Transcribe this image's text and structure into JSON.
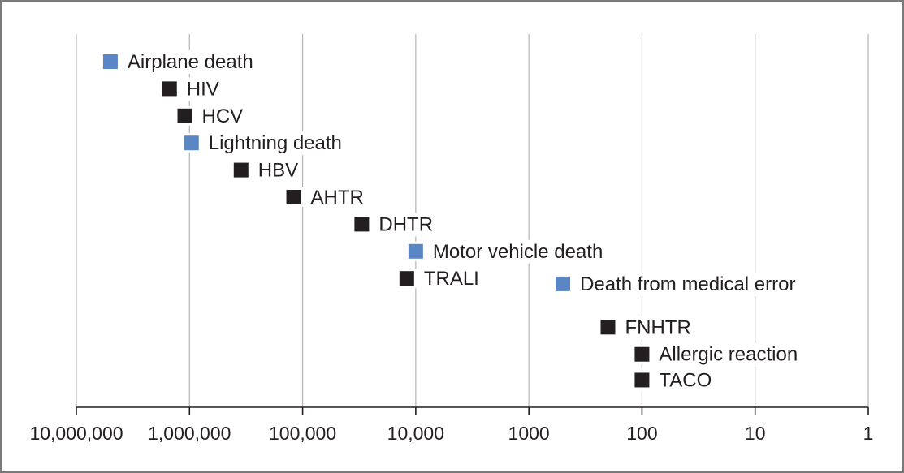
{
  "chart_data": {
    "type": "scatter",
    "title": "",
    "xlabel": "",
    "ylabel": "",
    "x_scale": "log",
    "x_reversed": true,
    "xlim": [
      10000000,
      1
    ],
    "x_ticks": [
      10000000,
      1000000,
      100000,
      10000,
      1000,
      100,
      10,
      1
    ],
    "x_tick_labels": [
      "10,000,000",
      "1,000,000",
      "100,000",
      "10,000",
      "1000",
      "100",
      "10",
      "1"
    ],
    "grid": "vertical",
    "legend": "none",
    "colors": {
      "transfusion_risk": "#231f20",
      "comparison_risk": "#5b86c5"
    },
    "points": [
      {
        "label": "Airplane death",
        "x": 5000000,
        "category": "comparison_risk"
      },
      {
        "label": "HIV",
        "x": 1500000,
        "category": "transfusion_risk"
      },
      {
        "label": "HCV",
        "x": 1100000,
        "category": "transfusion_risk"
      },
      {
        "label": "Lightning death",
        "x": 960000,
        "category": "comparison_risk"
      },
      {
        "label": "HBV",
        "x": 350000,
        "category": "transfusion_risk"
      },
      {
        "label": "AHTR",
        "x": 120000,
        "category": "transfusion_risk"
      },
      {
        "label": "DHTR",
        "x": 30000,
        "category": "transfusion_risk"
      },
      {
        "label": "Motor vehicle death",
        "x": 10000,
        "category": "comparison_risk"
      },
      {
        "label": "TRALI",
        "x": 12000,
        "category": "transfusion_risk"
      },
      {
        "label": "Death from medical error",
        "x": 500,
        "category": "comparison_risk"
      },
      {
        "label": "FNHTR",
        "x": 200,
        "category": "transfusion_risk"
      },
      {
        "label": "Allergic reaction",
        "x": 100,
        "category": "transfusion_risk"
      },
      {
        "label": "TACO",
        "x": 100,
        "category": "transfusion_risk"
      }
    ]
  }
}
